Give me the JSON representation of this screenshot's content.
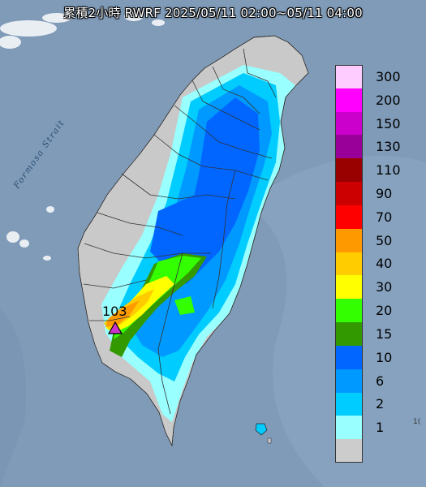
{
  "title": "累積2小時 RWRF 2025/05/11 02:00~05/11 04:00",
  "strait_label": "Formosa Strait",
  "max_point": {
    "value": "103",
    "marker_color": "#cc33cc"
  },
  "edge_fragment": "1(",
  "legend": [
    {
      "label": "300",
      "color": "#ffccff"
    },
    {
      "label": "200",
      "color": "#ff00ff"
    },
    {
      "label": "150",
      "color": "#cc00cc"
    },
    {
      "label": "130",
      "color": "#990099"
    },
    {
      "label": "110",
      "color": "#990000"
    },
    {
      "label": "90",
      "color": "#cc0000"
    },
    {
      "label": "70",
      "color": "#ff0000"
    },
    {
      "label": "50",
      "color": "#ff9900"
    },
    {
      "label": "40",
      "color": "#ffcc00"
    },
    {
      "label": "30",
      "color": "#ffff00"
    },
    {
      "label": "20",
      "color": "#33ff00"
    },
    {
      "label": "15",
      "color": "#339900"
    },
    {
      "label": "10",
      "color": "#0066ff"
    },
    {
      "label": "6",
      "color": "#0099ff"
    },
    {
      "label": "2",
      "color": "#00ccff"
    },
    {
      "label": "1",
      "color": "#99ffff"
    },
    {
      "label": "",
      "color": "#cccccc"
    }
  ]
}
